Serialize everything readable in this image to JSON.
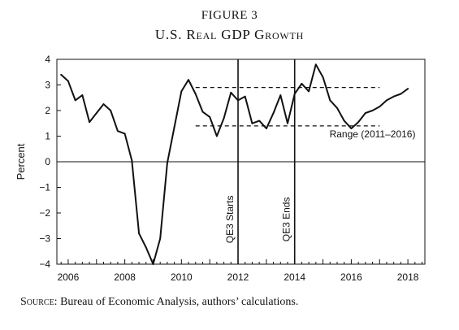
{
  "figure": {
    "label": "FIGURE 3",
    "title": "U.S. Real GDP Growth"
  },
  "source": {
    "label": "Source:",
    "text": " Bureau of Economic Analysis, authors’ calculations."
  },
  "chart_data": {
    "type": "line",
    "title": "U.S. Real GDP Growth",
    "xlabel": "",
    "ylabel": "Percent",
    "xlim": [
      2005.6,
      2018.6
    ],
    "ylim": [
      -4,
      4
    ],
    "x_ticks": [
      2006,
      2008,
      2010,
      2012,
      2014,
      2016,
      2018
    ],
    "y_ticks": [
      -4,
      -3,
      -2,
      -1,
      0,
      1,
      2,
      3,
      4
    ],
    "grid": false,
    "series": [
      {
        "x": [
          2005.75,
          2006.0,
          2006.25,
          2006.5,
          2006.75,
          2007.0,
          2007.25,
          2007.5,
          2007.75,
          2008.0,
          2008.25,
          2008.5,
          2008.75,
          2009.0,
          2009.25,
          2009.5,
          2009.75,
          2010.0,
          2010.25,
          2010.5,
          2010.75,
          2011.0,
          2011.25,
          2011.5,
          2011.75,
          2012.0,
          2012.25,
          2012.5,
          2012.75,
          2013.0,
          2013.25,
          2013.5,
          2013.75,
          2014.0,
          2014.25,
          2014.5,
          2014.75,
          2015.0,
          2015.25,
          2015.5,
          2015.75,
          2016.0,
          2016.25,
          2016.5,
          2016.75,
          2017.0,
          2017.25,
          2017.5,
          2017.75,
          2018.0
        ],
        "values": [
          3.4,
          3.15,
          2.4,
          2.6,
          1.55,
          1.9,
          2.25,
          2.0,
          1.2,
          1.1,
          0.05,
          -2.8,
          -3.35,
          -4.0,
          -3.0,
          -0.05,
          1.35,
          2.75,
          3.2,
          2.65,
          1.95,
          1.75,
          1.0,
          1.7,
          2.7,
          2.4,
          2.55,
          1.5,
          1.6,
          1.3,
          1.9,
          2.6,
          1.5,
          2.65,
          3.05,
          2.75,
          3.8,
          3.3,
          2.4,
          2.1,
          1.6,
          1.3,
          1.55,
          1.9,
          2.0,
          2.15,
          2.4,
          2.55,
          2.65,
          2.85
        ]
      }
    ],
    "reference_lines": {
      "range_upper": 2.9,
      "range_lower": 1.4,
      "range_x": [
        2010.5,
        2017.0
      ],
      "range_label": "Range (2011–2016)",
      "range_label_x": 2016.75,
      "range_label_y": 0.95
    },
    "vertical_markers": [
      {
        "x": 2012.0,
        "label": "QE3 Starts"
      },
      {
        "x": 2014.0,
        "label": "QE3 Ends"
      }
    ]
  }
}
